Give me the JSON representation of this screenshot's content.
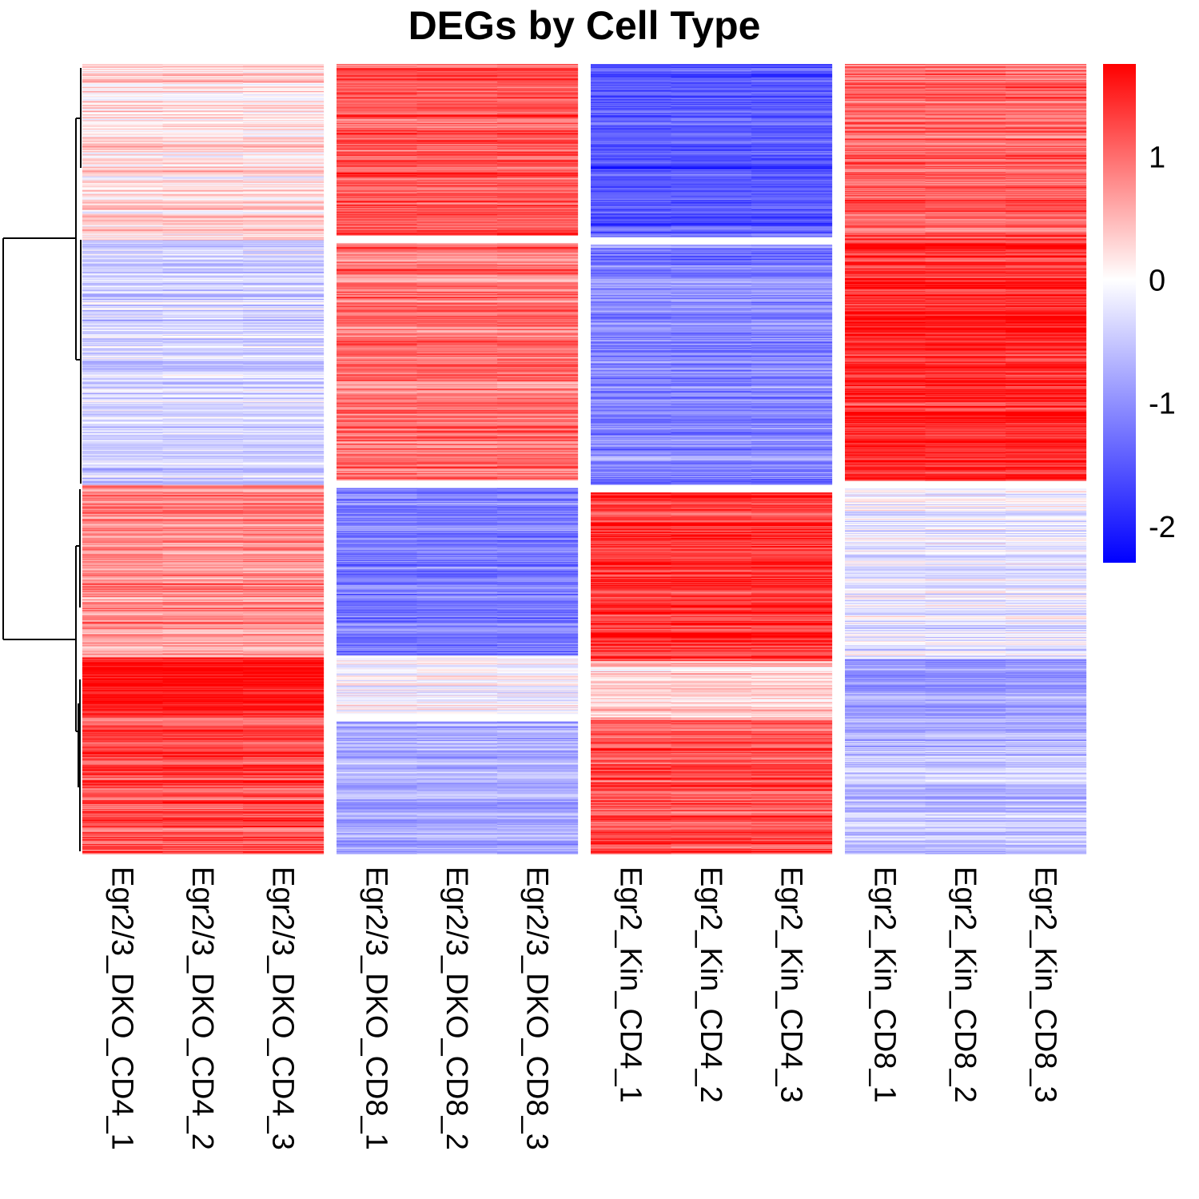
{
  "chart_data": {
    "type": "heatmap",
    "title": "DEGs by Cell Type",
    "columns": [
      "Egr2/3_DKO_CD4_1",
      "Egr2/3_DKO_CD4_2",
      "Egr2/3_DKO_CD4_3",
      "Egr2/3_DKO_CD8_1",
      "Egr2/3_DKO_CD8_2",
      "Egr2/3_DKO_CD8_3",
      "Egr2_Kin_CD4_1",
      "Egr2_Kin_CD4_2",
      "Egr2_Kin_CD4_3",
      "Egr2_Kin_CD8_1",
      "Egr2_Kin_CD8_2",
      "Egr2_Kin_CD8_3"
    ],
    "column_groups": [
      {
        "columns": [
          0,
          1,
          2
        ]
      },
      {
        "columns": [
          3,
          4,
          5
        ]
      },
      {
        "columns": [
          6,
          7,
          8
        ]
      },
      {
        "columns": [
          9,
          10,
          11
        ]
      }
    ],
    "row_clusters": [
      {
        "rows": 220,
        "col_group_means": [
          0.2,
          1.2,
          -1.5,
          1.1
        ]
      },
      {
        "rows": 305,
        "col_group_means": [
          -0.4,
          0.95,
          -1.1,
          1.5
        ]
      },
      {
        "rows": 215,
        "col_group_means": [
          0.8,
          -1.2,
          1.4,
          -0.2
        ]
      },
      {
        "rows": 75,
        "col_group_means": [
          1.6,
          -0.1,
          0.35,
          -0.9
        ]
      },
      {
        "rows": 170,
        "col_group_means": [
          1.2,
          -0.8,
          1.2,
          -0.6
        ]
      }
    ],
    "row_dendrogram": true,
    "color_scale": {
      "min": -2.3,
      "max": 1.75,
      "colors": [
        "#0000ff",
        "#ffffff",
        "#ff0000"
      ],
      "ticks": [
        1,
        0,
        -1,
        -2
      ]
    },
    "legend_position": "top-right"
  }
}
